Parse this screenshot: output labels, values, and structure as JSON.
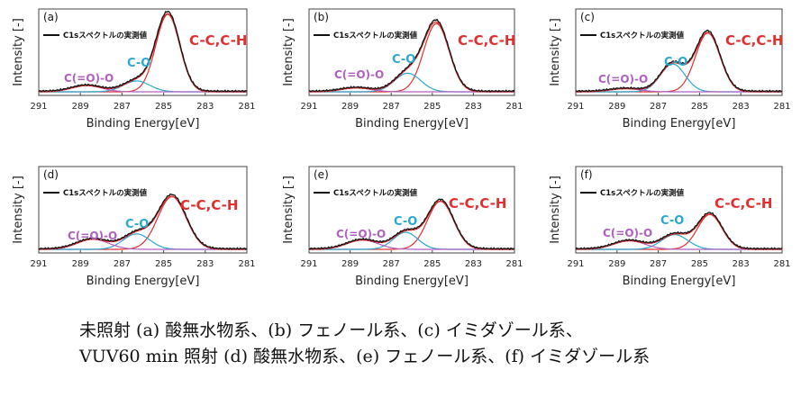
{
  "chart_data": [
    {
      "type": "line",
      "panel_label": "(a)",
      "xlabel": "Binding Energy[eV]",
      "ylabel": "Intensity [-]",
      "xlim": [
        291,
        281
      ],
      "xticks": [
        291,
        289,
        287,
        285,
        283,
        281
      ],
      "legend": "C1sスペクトルの実測値",
      "components": [
        {
          "label": "C-C,C-H",
          "color": "#e03030",
          "center": 284.8,
          "height": 1.0,
          "fwhm": 1.35
        },
        {
          "label": "C-O",
          "color": "#2aa8d0",
          "center": 286.3,
          "height": 0.14,
          "fwhm": 1.5
        },
        {
          "label": "C(=O)-O",
          "color": "#b060c0",
          "center": 288.7,
          "height": 0.08,
          "fwhm": 1.7
        }
      ]
    },
    {
      "type": "line",
      "panel_label": "(b)",
      "xlabel": "Binding Energy[eV]",
      "ylabel": "Intensity [-]",
      "xlim": [
        291,
        281
      ],
      "xticks": [
        291,
        289,
        287,
        285,
        283,
        281
      ],
      "legend": "C1sスペクトルの実測値",
      "components": [
        {
          "label": "C-C,C-H",
          "color": "#e03030",
          "center": 284.8,
          "height": 0.88,
          "fwhm": 1.45
        },
        {
          "label": "C-O",
          "color": "#2aa8d0",
          "center": 286.2,
          "height": 0.24,
          "fwhm": 1.5
        },
        {
          "label": "C(=O)-O",
          "color": "#b060c0",
          "center": 288.7,
          "height": 0.05,
          "fwhm": 1.7
        }
      ]
    },
    {
      "type": "line",
      "panel_label": "(c)",
      "xlabel": "Binding Energy[eV]",
      "ylabel": "Intensity [-]",
      "xlim": [
        291,
        281
      ],
      "xticks": [
        291,
        289,
        287,
        285,
        283,
        281
      ],
      "legend": "C1sスペクトルの実測値",
      "components": [
        {
          "label": "C-C,C-H",
          "color": "#e03030",
          "center": 284.6,
          "height": 0.76,
          "fwhm": 1.4
        },
        {
          "label": "C-O",
          "color": "#2aa8d0",
          "center": 286.3,
          "height": 0.36,
          "fwhm": 1.4
        },
        {
          "label": "C(=O)-O",
          "color": "#b060c0",
          "center": 288.6,
          "height": 0.04,
          "fwhm": 1.7
        }
      ]
    },
    {
      "type": "line",
      "panel_label": "(d)",
      "xlabel": "Binding Energy[eV]",
      "ylabel": "Intensity [-]",
      "xlim": [
        291,
        281
      ],
      "xticks": [
        291,
        289,
        287,
        285,
        283,
        281
      ],
      "legend": "C1sスペクトルの実測値",
      "components": [
        {
          "label": "C-C,C-H",
          "color": "#e03030",
          "center": 284.6,
          "height": 0.68,
          "fwhm": 1.6
        },
        {
          "label": "C-O",
          "color": "#2aa8d0",
          "center": 286.3,
          "height": 0.2,
          "fwhm": 1.5
        },
        {
          "label": "C(=O)-O",
          "color": "#b060c0",
          "center": 288.4,
          "height": 0.13,
          "fwhm": 1.8
        }
      ]
    },
    {
      "type": "line",
      "panel_label": "(e)",
      "xlabel": "Binding Energy[eV]",
      "ylabel": "Intensity [-]",
      "xlim": [
        291,
        281
      ],
      "xticks": [
        291,
        289,
        287,
        285,
        283,
        281
      ],
      "legend": "C1sスペクトルの実測値",
      "components": [
        {
          "label": "C-C,C-H",
          "color": "#e03030",
          "center": 284.6,
          "height": 0.62,
          "fwhm": 1.5
        },
        {
          "label": "C-O",
          "color": "#2aa8d0",
          "center": 286.3,
          "height": 0.22,
          "fwhm": 1.4
        },
        {
          "label": "C(=O)-O",
          "color": "#b060c0",
          "center": 288.4,
          "height": 0.12,
          "fwhm": 1.8
        }
      ]
    },
    {
      "type": "line",
      "panel_label": "(f)",
      "xlabel": "Binding Energy[eV]",
      "ylabel": "Intensity [-]",
      "xlim": [
        291,
        281
      ],
      "xticks": [
        291,
        289,
        287,
        285,
        283,
        281
      ],
      "legend": "C1sスペクトルの実測値",
      "components": [
        {
          "label": "C-C,C-H",
          "color": "#e03030",
          "center": 284.5,
          "height": 0.45,
          "fwhm": 1.4
        },
        {
          "label": "C-O",
          "color": "#2aa8d0",
          "center": 286.2,
          "height": 0.19,
          "fwhm": 1.5
        },
        {
          "label": "C(=O)-O",
          "color": "#b060c0",
          "center": 288.4,
          "height": 0.11,
          "fwhm": 1.8
        }
      ]
    }
  ],
  "measured_color": "#111111",
  "caption": {
    "line1": "未照射 (a) 酸無水物系、(b) フェノール系、(c) イミダゾール系、",
    "line2": "VUV60 min 照射 (d) 酸無水物系、(e) フェノール系、(f) イミダゾール系"
  }
}
